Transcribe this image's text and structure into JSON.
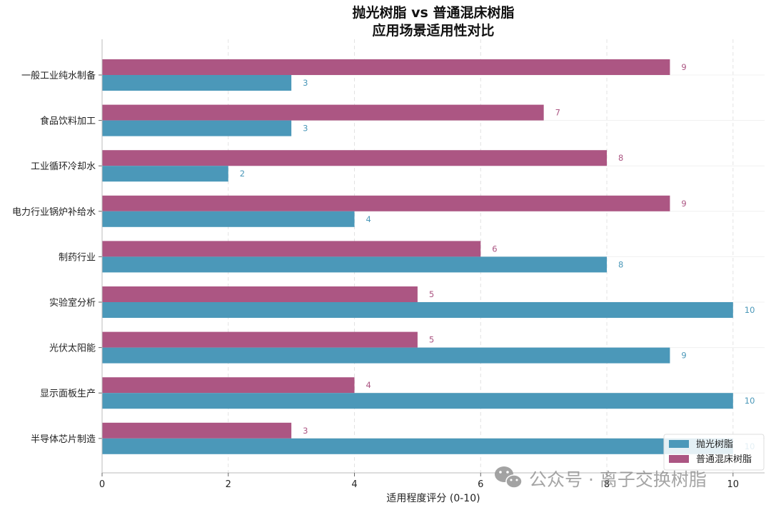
{
  "chart_data": {
    "type": "bar",
    "orientation": "horizontal",
    "title_lines": [
      "抛光树脂 vs 普通混床树脂",
      "应用场景适用性对比"
    ],
    "xlabel": "适用程度评分 (0-10)",
    "ylabel": "",
    "xlim": [
      0,
      10.5
    ],
    "xticks": [
      0,
      2,
      4,
      6,
      8,
      10
    ],
    "categories": [
      "一般工业纯水制备",
      "食品饮料加工",
      "工业循环冷却水",
      "电力行业锅炉补给水",
      "制药行业",
      "实验室分析",
      "光伏太阳能",
      "显示面板生产",
      "半导体芯片制造"
    ],
    "series": [
      {
        "name": "抛光树脂",
        "color": "#4b98b9",
        "values": [
          3,
          3,
          2,
          4,
          8,
          10,
          9,
          10,
          10
        ]
      },
      {
        "name": "普通混床树脂",
        "color": "#ac5683",
        "values": [
          9,
          7,
          8,
          9,
          6,
          5,
          5,
          4,
          3
        ]
      }
    ],
    "grid": true,
    "legend_position": "bottom-right"
  },
  "watermark": {
    "text": "公众号 · 离子交换树脂",
    "icon": "wechat-icon"
  }
}
